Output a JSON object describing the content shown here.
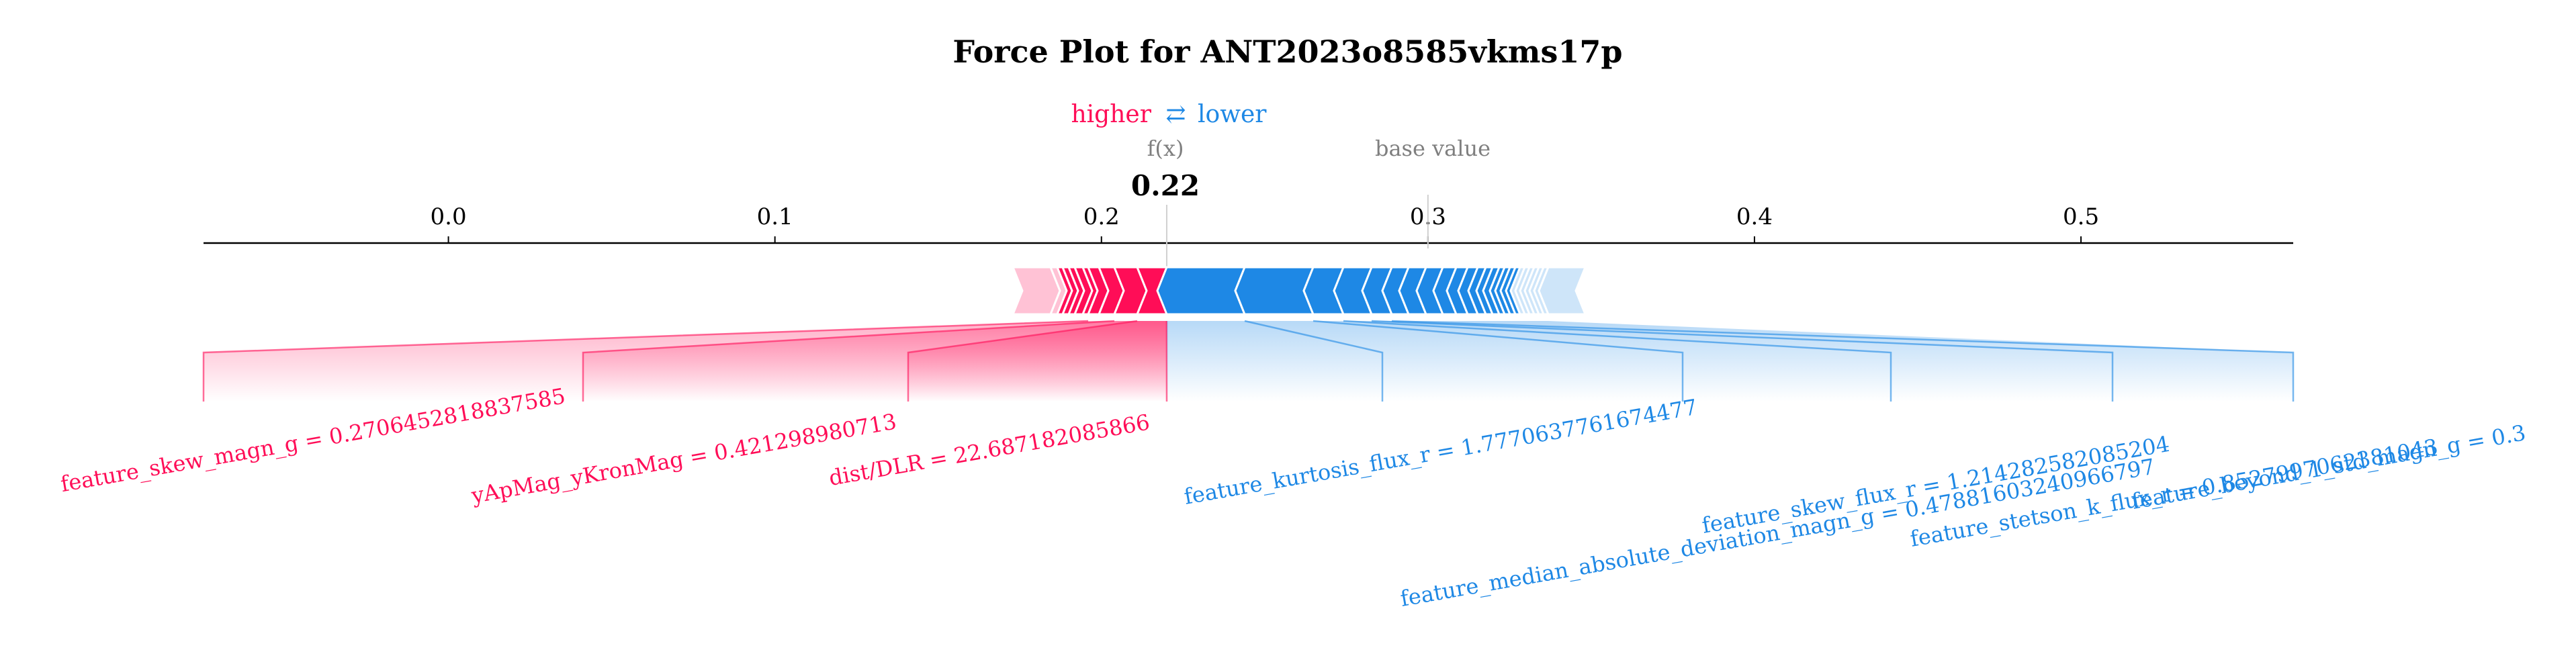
{
  "colors": {
    "positive": "#ff0d57",
    "negative": "#1e88e5",
    "axis": "#000000",
    "muted": "#7f7f7f"
  },
  "legend": {
    "higher": "higher",
    "arrow": "⇄",
    "lower": "lower"
  },
  "labels": {
    "fx": "f(x)",
    "fx_value": "0.22",
    "base_value": "base value"
  },
  "chart_data": {
    "type": "force",
    "title": "Force Plot for ANT2023o8585vkms17p",
    "xlim": [
      -0.075,
      0.565
    ],
    "ticks": [
      0.0,
      0.1,
      0.2,
      0.3,
      0.4,
      0.5
    ],
    "tick_labels": [
      "0.0",
      "0.1",
      "0.2",
      "0.3",
      "0.4",
      "0.5"
    ],
    "output_value": 0.22,
    "base_value": 0.3,
    "positive_features": [
      {
        "label": "feature_skew_magn_g = 0.2706452818837585"
      },
      {
        "label": "yApMag_yKronMag = 0.421298980713"
      },
      {
        "label": "dist/DLR = 22.687182085866"
      }
    ],
    "negative_features": [
      {
        "label": "feature_kurtosis_flux_r = 1.7770637761674477"
      },
      {
        "label": "feature_median_absolute_deviation_magn_g = 0.47881603240966797"
      },
      {
        "label": "feature_skew_flux_r = 1.214282582085204"
      },
      {
        "label": "feature_stetson_k_flux_r = 0.8527997062381043"
      },
      {
        "label": "feature_beyond_1_std_magn_g = 0.3"
      }
    ]
  }
}
